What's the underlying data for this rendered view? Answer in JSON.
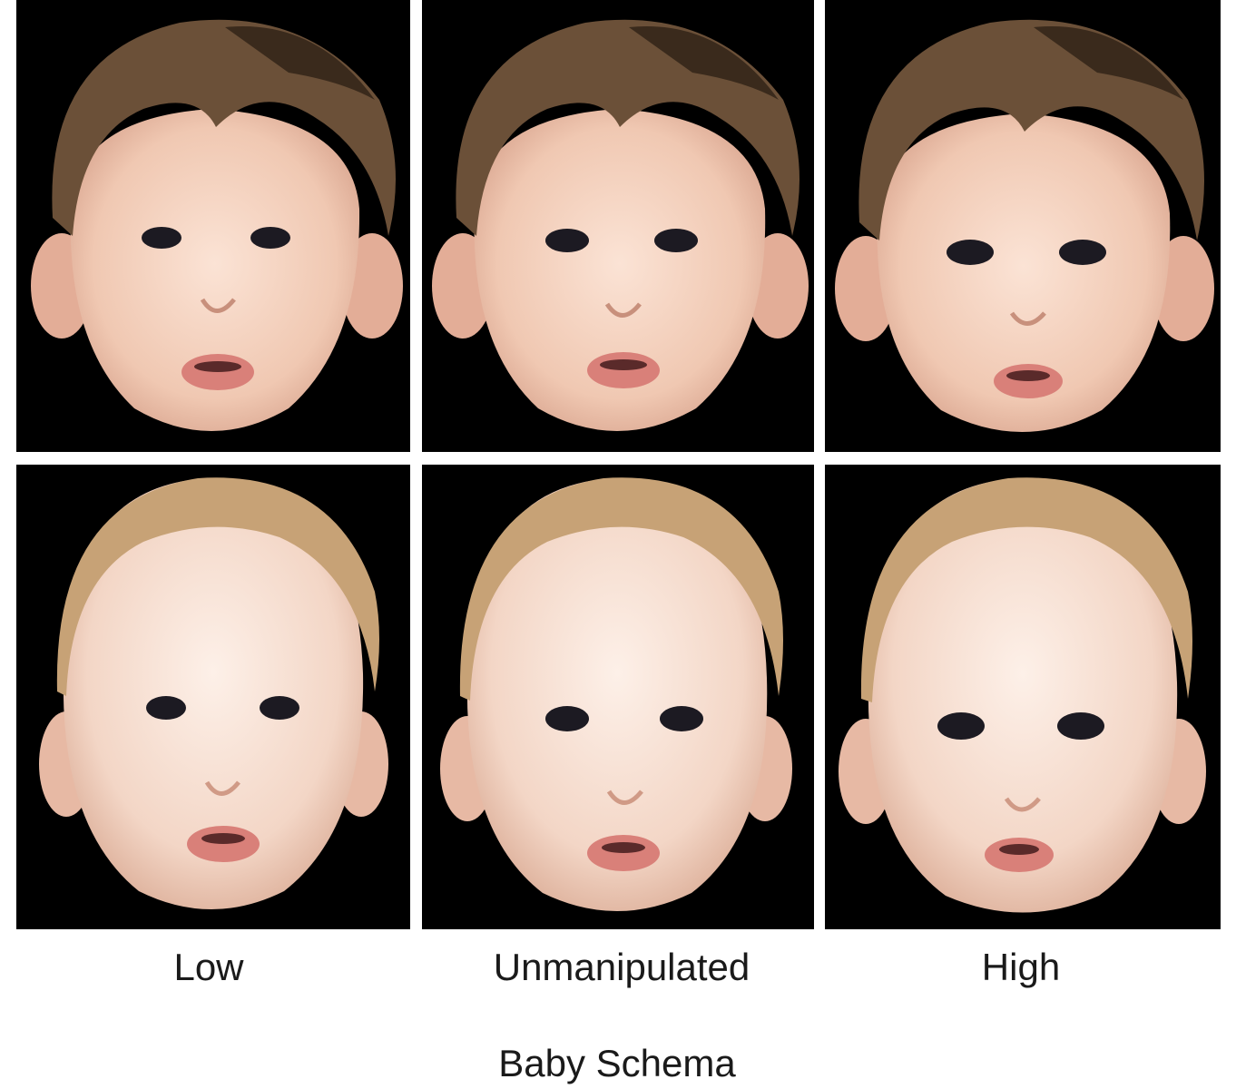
{
  "figure": {
    "columns": [
      {
        "label": "Low"
      },
      {
        "label": "Unmanipulated"
      },
      {
        "label": "High"
      }
    ],
    "rows": [
      {
        "hair_color": "#6b5038",
        "hair_shadow": "#3a2a1c"
      },
      {
        "hair_color": "#c7a276",
        "hair_shadow": "#9c7a55"
      }
    ],
    "axis_label": "Baby Schema",
    "colors": {
      "panel_background": "#000000",
      "skin": "#f1cdb8",
      "skin_shade": "#d9a791",
      "lips": "#d98079",
      "eyes": "#1c1a22"
    }
  }
}
